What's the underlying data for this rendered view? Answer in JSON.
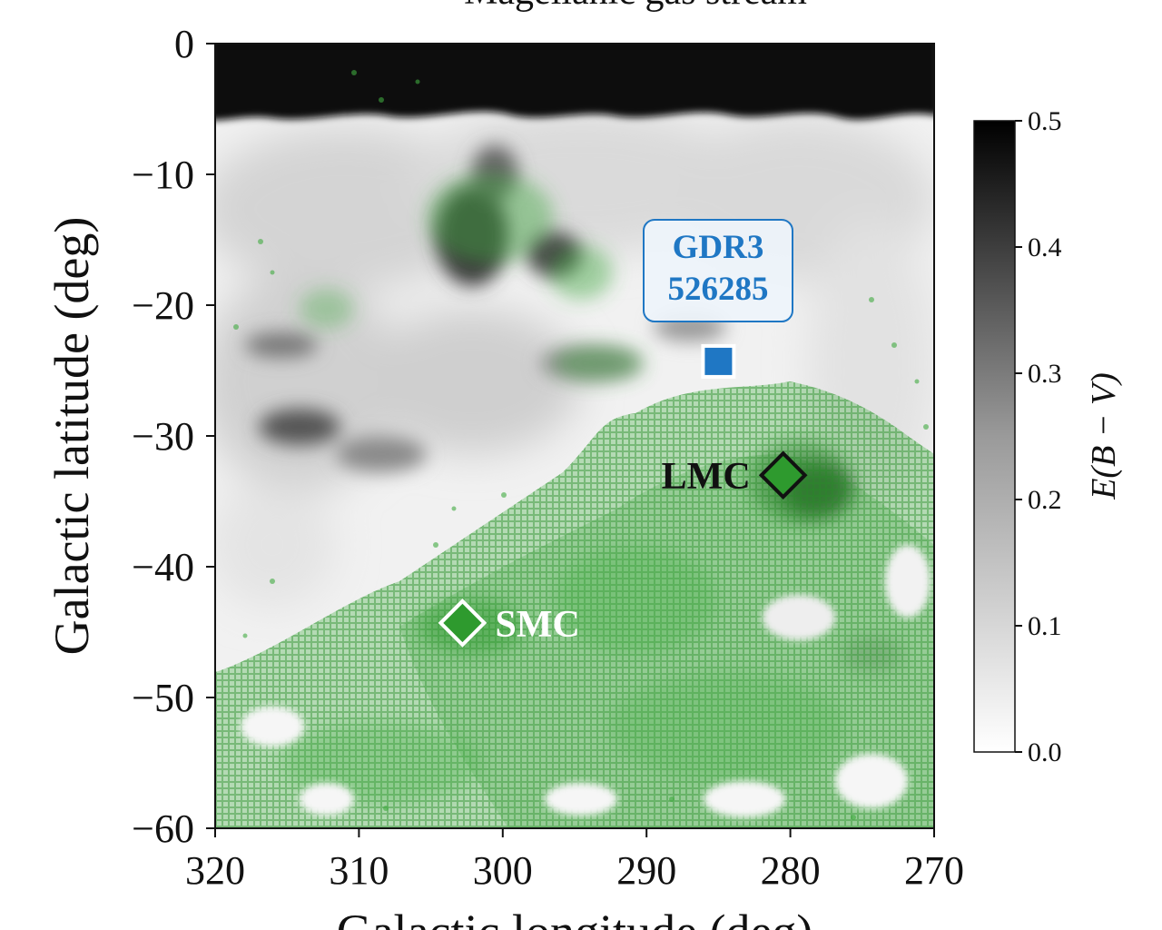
{
  "chart_data": {
    "type": "heatmap",
    "title": "Magellanic gas stream",
    "xlabel": "Galactic longitude (deg)",
    "ylabel": "Galactic latitude (deg)",
    "xlim": [
      320,
      270
    ],
    "ylim": [
      -60,
      0
    ],
    "x_ticks": [
      "320",
      "310",
      "300",
      "290",
      "280",
      "270"
    ],
    "y_ticks": [
      "0",
      "−10",
      "−20",
      "−30",
      "−40",
      "−50",
      "−60"
    ],
    "x_tick_values": [
      320,
      310,
      300,
      290,
      280,
      270
    ],
    "y_tick_values": [
      0,
      -10,
      -20,
      -30,
      -40,
      -50,
      -60
    ],
    "colorbar": {
      "label": "E(B − V)",
      "range": [
        0.0,
        0.5
      ],
      "tick_values": [
        0.0,
        0.1,
        0.2,
        0.3,
        0.4,
        0.5
      ],
      "ticks": [
        "0.0",
        "0.1",
        "0.2",
        "0.3",
        "0.4",
        "0.5"
      ],
      "colormap": "white-to-black"
    },
    "markers": [
      {
        "label": "LMC",
        "l": 280.5,
        "b": -33.0,
        "shape": "diamond",
        "fill": "#2e9a2e",
        "edge": "#111111",
        "label_color": "#111111"
      },
      {
        "label": "SMC",
        "l": 302.8,
        "b": -44.3,
        "shape": "diamond",
        "fill": "#2e9a2e",
        "edge": "#ffffff",
        "label_color": "#ffffff"
      }
    ],
    "source": {
      "label_lines": [
        "GDR3",
        "526285"
      ],
      "l": 285.0,
      "b": -24.3,
      "shape": "square",
      "color": "#1f77c4"
    },
    "gas_stream_color": "#2ea52e"
  }
}
